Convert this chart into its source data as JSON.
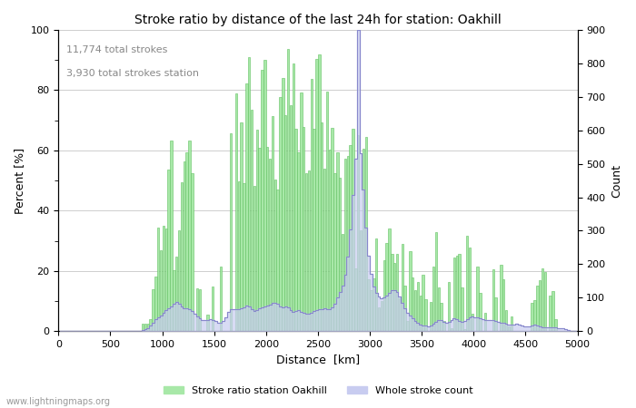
{
  "title": "Stroke ratio by distance of the last 24h for station: Oakhill",
  "xlabel": "Distance  [km]",
  "ylabel_left": "Percent [%]",
  "ylabel_right": "Count",
  "annotation_line1": "11,774 total strokes",
  "annotation_line2": "3,930 total strokes station",
  "xlim": [
    0,
    5000
  ],
  "ylim_left": [
    0,
    100
  ],
  "ylim_right": [
    0,
    900
  ],
  "xticks": [
    0,
    500,
    1000,
    1500,
    2000,
    2500,
    3000,
    3500,
    4000,
    4500,
    5000
  ],
  "yticks_left": [
    0,
    20,
    40,
    60,
    80,
    100
  ],
  "yticks_right": [
    0,
    100,
    200,
    300,
    400,
    500,
    600,
    700,
    800,
    900
  ],
  "bar_color_ratio": "#a8e8a8",
  "bar_edge_ratio": "#60c060",
  "fill_color_count": "#c8ccf0",
  "line_color_count": "#8888cc",
  "legend_label_ratio": "Stroke ratio station Oakhill",
  "legend_label_count": "Whole stroke count",
  "watermark": "www.lightningmaps.org",
  "bin_width": 25,
  "grid_color": "#bbbbbb",
  "seed": 12345
}
